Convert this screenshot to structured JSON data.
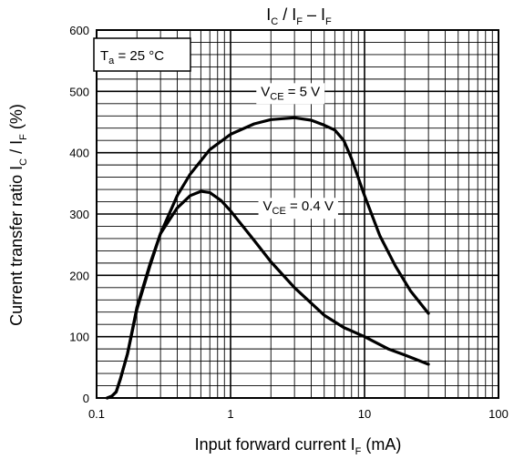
{
  "chart_data": {
    "type": "line",
    "title": {
      "main": "I",
      "s1": "C",
      "mid": " / I",
      "s2": "F",
      "end": " – I",
      "s3": "F"
    },
    "xlabel": {
      "pre": "Input forward current  I",
      "sub": "F",
      "post": "  (mA)"
    },
    "ylabel": {
      "pre": "Current transfer ratio  I",
      "s1": "C",
      "mid": " / I",
      "s2": "F",
      "post": " (%)"
    },
    "xscale": "log",
    "xlim": [
      0.1,
      100
    ],
    "ylim": [
      0,
      600
    ],
    "grid": true,
    "x_tick_labels": [
      "0.1",
      "1",
      "10",
      "100"
    ],
    "y_tick_labels": [
      "0",
      "100",
      "200",
      "300",
      "400",
      "500",
      "600"
    ],
    "condition_label": {
      "pre": "T",
      "sub": "a",
      "post": " = 25 °C"
    },
    "series": [
      {
        "label": {
          "pre": "V",
          "sub": "CE",
          "post": " = 5 V"
        },
        "color": "#000000",
        "x": [
          0.12,
          0.13,
          0.14,
          0.15,
          0.17,
          0.2,
          0.25,
          0.3,
          0.4,
          0.5,
          0.7,
          1.0,
          1.5,
          2.0,
          3.0,
          4.0,
          5.0,
          6.0,
          7.0,
          8.0,
          10.0,
          13.0,
          17.0,
          22.0,
          30.0
        ],
        "y": [
          0,
          3,
          10,
          30,
          72,
          145,
          215,
          268,
          330,
          365,
          405,
          430,
          447,
          454,
          457,
          453,
          445,
          437,
          420,
          390,
          330,
          265,
          215,
          175,
          138
        ]
      },
      {
        "label": {
          "pre": "V",
          "sub": "CE",
          "post": " = 0.4 V"
        },
        "color": "#000000",
        "x": [
          0.12,
          0.13,
          0.14,
          0.15,
          0.17,
          0.2,
          0.25,
          0.3,
          0.4,
          0.5,
          0.6,
          0.7,
          0.85,
          1.0,
          1.5,
          2.0,
          3.0,
          5.0,
          7.0,
          10.0,
          15.0,
          20.0,
          30.0
        ],
        "y": [
          0,
          3,
          10,
          30,
          72,
          148,
          218,
          268,
          310,
          330,
          337,
          335,
          322,
          305,
          257,
          222,
          180,
          135,
          115,
          100,
          80,
          70,
          55
        ]
      }
    ]
  }
}
